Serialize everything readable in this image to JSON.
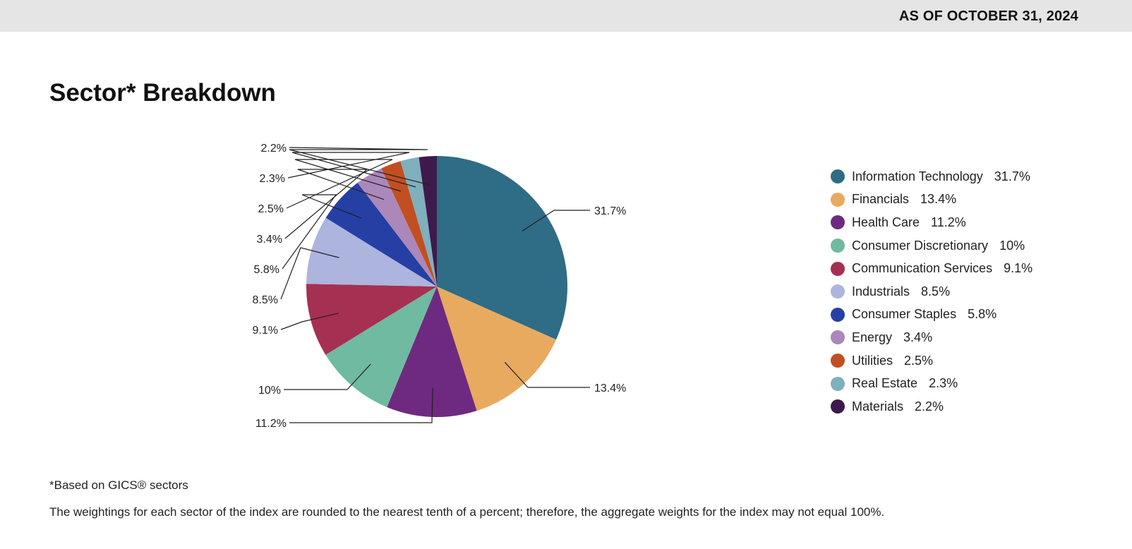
{
  "header": {
    "as_of": "AS OF OCTOBER 31, 2024"
  },
  "title": "Sector* Breakdown",
  "footnote": "*Based on GICS® sectors",
  "disclaimer": "The weightings for each sector of the index are rounded to the nearest tenth of a percent; therefore, the aggregate weights for the index may not equal 100%.",
  "chart_data": {
    "type": "pie",
    "title": "Sector* Breakdown",
    "categories": [
      "Information Technology",
      "Financials",
      "Health Care",
      "Consumer Discretionary",
      "Communication Services",
      "Industrials",
      "Consumer Staples",
      "Energy",
      "Utilities",
      "Real Estate",
      "Materials"
    ],
    "values": [
      31.7,
      13.4,
      11.2,
      10,
      9.1,
      8.5,
      5.8,
      3.4,
      2.5,
      2.3,
      2.2
    ],
    "value_labels": [
      "31.7%",
      "13.4%",
      "11.2%",
      "10%",
      "9.1%",
      "8.5%",
      "5.8%",
      "3.4%",
      "2.5%",
      "2.3%",
      "2.2%"
    ],
    "colors": [
      "#2f6c86",
      "#e8aa5e",
      "#6e2a80",
      "#6fbaa0",
      "#a53052",
      "#adb4de",
      "#263fa5",
      "#ab87ba",
      "#c24f22",
      "#7eb0bd",
      "#3d1a4b"
    ],
    "legend_position": "right"
  }
}
